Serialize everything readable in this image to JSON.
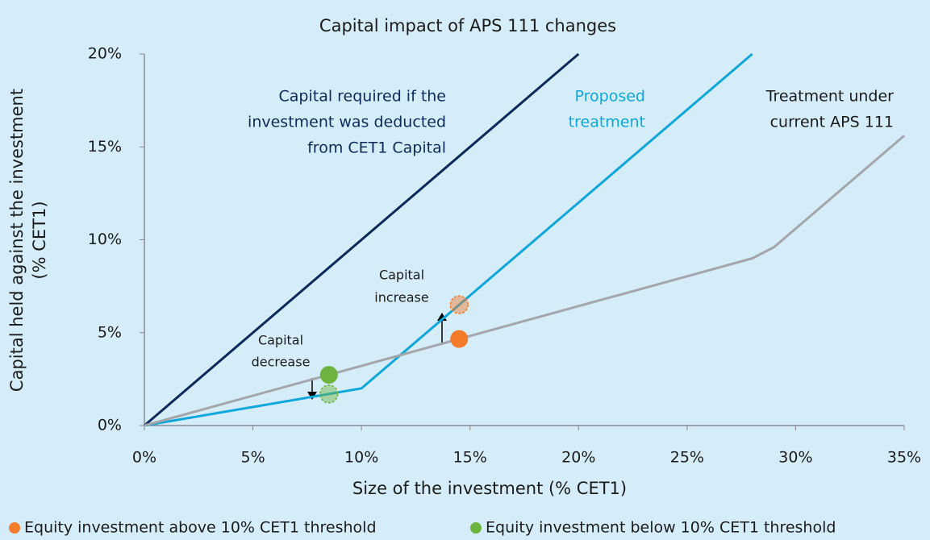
{
  "chart_data": {
    "type": "line",
    "title": "Capital impact of APS 111 changes",
    "x_label": "Size of the investment (% CET1)",
    "y_label": [
      "Capital held against the investment",
      "(% CET1)"
    ],
    "xlim": [
      0,
      35
    ],
    "ylim": [
      0,
      20
    ],
    "xticks": [
      {
        "value": 0,
        "label": "0%"
      },
      {
        "value": 5,
        "label": "5%"
      },
      {
        "value": 10,
        "label": "10%"
      },
      {
        "value": 15,
        "label": "15%"
      },
      {
        "value": 20,
        "label": "20%"
      },
      {
        "value": 25,
        "label": "25%"
      },
      {
        "value": 30,
        "label": "30%"
      },
      {
        "value": 35,
        "label": "35%"
      }
    ],
    "yticks": [
      {
        "value": 0,
        "label": "0%"
      },
      {
        "value": 5,
        "label": "5%"
      },
      {
        "value": 10,
        "label": "10%"
      },
      {
        "value": 15,
        "label": "15%"
      },
      {
        "value": 20,
        "label": "20%"
      }
    ],
    "series": [
      {
        "name": [
          "Capital required if the",
          "investment was deducted",
          "from CET1 Capital"
        ],
        "color": "#0b2a5b",
        "x": [
          0,
          20
        ],
        "values": [
          0,
          20
        ]
      },
      {
        "name": [
          "Proposed",
          "treatment"
        ],
        "color": "#0fa7d9",
        "x": [
          0,
          10,
          28
        ],
        "values": [
          0,
          2,
          20
        ]
      },
      {
        "name": [
          "Treatment under",
          "current APS 111"
        ],
        "color": "#a3a6aa",
        "x": [
          0,
          28,
          29,
          35
        ],
        "values": [
          0,
          9,
          9.6,
          15.6
        ]
      }
    ],
    "points": [
      {
        "name": "Equity investment above 10% CET1 threshold",
        "color": "#f47b2a",
        "x": [
          14.5,
          14.5
        ],
        "values": [
          4.66,
          6.5
        ]
      },
      {
        "name": "Equity investment below 10% CET1 threshold",
        "color": "#6cb33f",
        "x": [
          8.5,
          8.5
        ],
        "values": [
          2.73,
          1.7
        ]
      }
    ],
    "annotations": [
      [
        "Capital",
        "increase"
      ],
      [
        "Capital",
        "decrease"
      ]
    ]
  }
}
